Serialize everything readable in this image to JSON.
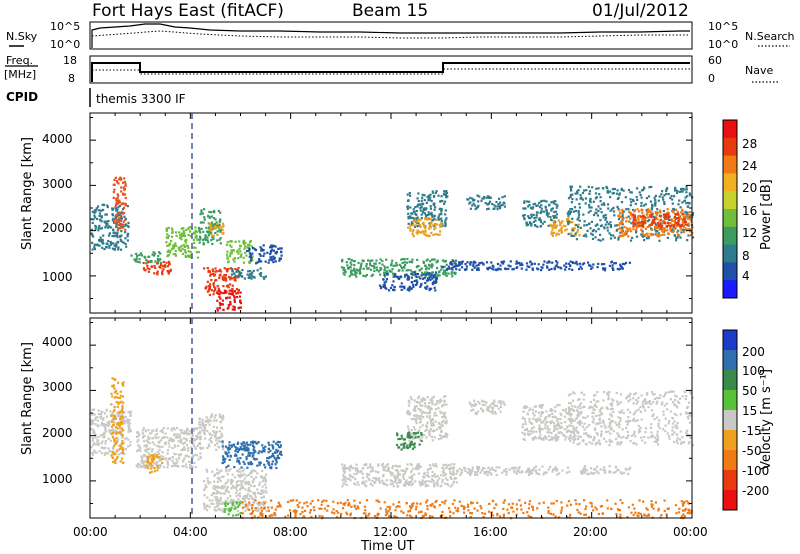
{
  "header": {
    "station": "Fort Hays East (fitACF)",
    "beam": "Beam 15",
    "date": "01/Jul/2012"
  },
  "summary_panels": {
    "nsky_label": "N.Sky",
    "nsearch_label": "N.Search",
    "count_ticks": [
      "10^5",
      "10^0"
    ],
    "freq_label_line1": "Freq.",
    "freq_label_line2": "[MHz]",
    "freq_ticks": [
      "18",
      "8"
    ],
    "nave_label": "Nave",
    "nave_ticks": [
      "60",
      "0"
    ],
    "cpid_label": "CPID",
    "cpid_value": "themis 3300 IF"
  },
  "chart_data": [
    {
      "type": "heatmap",
      "name": "power",
      "ylabel": "Slant Range [km]",
      "xlabel": "",
      "xlim_hours": [
        0,
        24
      ],
      "ylim": [
        180,
        4600
      ],
      "y_ticks": [
        "1000",
        "2000",
        "3000",
        "4000"
      ],
      "colorbar": {
        "label": "Power [dB]",
        "tick_labels": [
          "4",
          "8",
          "12",
          "16",
          "20",
          "24",
          "28"
        ],
        "colors": [
          "#1a1aff",
          "#1f4fa8",
          "#2e7b8c",
          "#3c9c60",
          "#6fbf3b",
          "#c8d22d",
          "#f0b020",
          "#f07a14",
          "#e83a10",
          "#e81010"
        ]
      },
      "regions": [
        {
          "t": [
            0.0,
            1.5
          ],
          "r": [
            1600,
            2600
          ],
          "color": "#2e7b8c"
        },
        {
          "t": [
            0.9,
            1.4
          ],
          "r": [
            2000,
            3200
          ],
          "color": "#e85020"
        },
        {
          "t": [
            1.6,
            2.8
          ],
          "r": [
            1300,
            1550
          ],
          "color": "#3c9c60"
        },
        {
          "t": [
            2.0,
            3.2
          ],
          "r": [
            1050,
            1350
          ],
          "color": "#e83a10"
        },
        {
          "t": [
            3.0,
            4.3
          ],
          "r": [
            1400,
            2100
          ],
          "color": "#6fbf3b"
        },
        {
          "t": [
            4.3,
            5.2
          ],
          "r": [
            1700,
            2500
          ],
          "color": "#3c9c60"
        },
        {
          "t": [
            4.7,
            5.3
          ],
          "r": [
            1900,
            2200
          ],
          "color": "#e8a020"
        },
        {
          "t": [
            5.4,
            6.5
          ],
          "r": [
            1300,
            1800
          ],
          "color": "#6fbf3b"
        },
        {
          "t": [
            6.2,
            7.6
          ],
          "r": [
            1300,
            1700
          ],
          "color": "#1f4fa8"
        },
        {
          "t": [
            4.5,
            5.9
          ],
          "r": [
            600,
            1200
          ],
          "color": "#e83a10"
        },
        {
          "t": [
            5.0,
            6.0
          ],
          "r": [
            250,
            700
          ],
          "color": "#e81010"
        },
        {
          "t": [
            5.6,
            7.0
          ],
          "r": [
            950,
            1200
          ],
          "color": "#2e7b8c"
        },
        {
          "t": [
            10.0,
            14.6
          ],
          "r": [
            1000,
            1400
          ],
          "color": "#3c9c60"
        },
        {
          "t": [
            11.5,
            13.8
          ],
          "r": [
            700,
            1100
          ],
          "color": "#1f4fa8"
        },
        {
          "t": [
            12.6,
            14.2
          ],
          "r": [
            2100,
            2900
          ],
          "color": "#2e7b8c"
        },
        {
          "t": [
            12.6,
            14.0
          ],
          "r": [
            1900,
            2300
          ],
          "color": "#e8a020"
        },
        {
          "t": [
            14.0,
            21.5
          ],
          "r": [
            1150,
            1350
          ],
          "color": "#1f4fa8"
        },
        {
          "t": [
            15.0,
            16.5
          ],
          "r": [
            2500,
            2800
          ],
          "color": "#2e7b8c"
        },
        {
          "t": [
            17.2,
            18.6
          ],
          "r": [
            2100,
            2700
          ],
          "color": "#2e7b8c"
        },
        {
          "t": [
            18.3,
            19.5
          ],
          "r": [
            1900,
            2300
          ],
          "color": "#e8a020"
        },
        {
          "t": [
            19.0,
            24.0
          ],
          "r": [
            1800,
            3000
          ],
          "color": "#2e7b8c"
        },
        {
          "t": [
            21.0,
            24.0
          ],
          "r": [
            1900,
            2500
          ],
          "color": "#f07a14"
        },
        {
          "t": [
            21.6,
            23.8
          ],
          "r": [
            2100,
            2400
          ],
          "color": "#e83a10"
        }
      ]
    },
    {
      "type": "heatmap",
      "name": "velocity",
      "ylabel": "Slant Range [km]",
      "xlabel": "Time UT",
      "xlim_hours": [
        0,
        24
      ],
      "ylim": [
        180,
        4600
      ],
      "x_ticks": [
        "00:00",
        "04:00",
        "08:00",
        "12:00",
        "16:00",
        "20:00",
        "00:00"
      ],
      "y_ticks": [
        "1000",
        "2000",
        "3000",
        "4000"
      ],
      "colorbar": {
        "label": "Velocity [m s⁻¹]",
        "tick_labels": [
          "200",
          "100",
          "50",
          "15",
          "-15",
          "-50",
          "-100",
          "-200"
        ],
        "colors": [
          "#1a3cc8",
          "#2f6fb0",
          "#3a8a4a",
          "#55c23a",
          "#c8c8c4",
          "#f0a020",
          "#f07a14",
          "#e83a10",
          "#e81010"
        ]
      },
      "regions": [
        {
          "t": [
            0.0,
            1.6
          ],
          "r": [
            1600,
            2600
          ],
          "color": "#c8c8c4"
        },
        {
          "t": [
            0.8,
            1.3
          ],
          "r": [
            1400,
            3300
          ],
          "color": "#f0a020"
        },
        {
          "t": [
            1.8,
            4.4
          ],
          "r": [
            1300,
            2200
          ],
          "color": "#c8c8c4"
        },
        {
          "t": [
            2.2,
            2.9
          ],
          "r": [
            1200,
            1600
          ],
          "color": "#f0a020"
        },
        {
          "t": [
            4.3,
            5.3
          ],
          "r": [
            1700,
            2500
          ],
          "color": "#c8c8c4"
        },
        {
          "t": [
            5.2,
            7.6
          ],
          "r": [
            1300,
            1900
          ],
          "color": "#2f6fb0"
        },
        {
          "t": [
            4.5,
            7.0
          ],
          "r": [
            350,
            1300
          ],
          "color": "#c8c8c4"
        },
        {
          "t": [
            5.3,
            6.0
          ],
          "r": [
            250,
            550
          ],
          "color": "#55c23a"
        },
        {
          "t": [
            6.0,
            24.0
          ],
          "r": [
            200,
            600
          ],
          "color": "#f07a14"
        },
        {
          "t": [
            10.0,
            14.6
          ],
          "r": [
            900,
            1400
          ],
          "color": "#c8c8c4"
        },
        {
          "t": [
            12.6,
            14.2
          ],
          "r": [
            1900,
            2900
          ],
          "color": "#c8c8c4"
        },
        {
          "t": [
            14.0,
            21.5
          ],
          "r": [
            1150,
            1350
          ],
          "color": "#c8c8c4"
        },
        {
          "t": [
            15.0,
            16.5
          ],
          "r": [
            2500,
            2800
          ],
          "color": "#c8c8c4"
        },
        {
          "t": [
            17.2,
            19.5
          ],
          "r": [
            1900,
            2700
          ],
          "color": "#c8c8c4"
        },
        {
          "t": [
            19.0,
            24.0
          ],
          "r": [
            1800,
            3000
          ],
          "color": "#c8c8c4"
        },
        {
          "t": [
            12.2,
            13.2
          ],
          "r": [
            1700,
            2100
          ],
          "color": "#3a8a4a"
        }
      ]
    }
  ]
}
